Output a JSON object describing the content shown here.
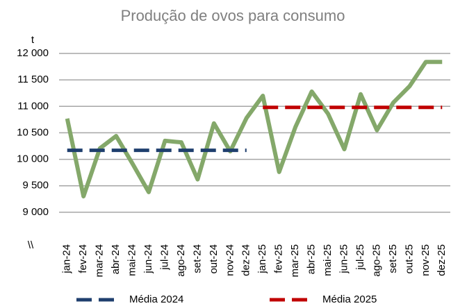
{
  "chart_data": {
    "type": "line",
    "title": "Produção de ovos para consumo",
    "y_unit": "t",
    "y_break_label": "\\\\",
    "categories": [
      "jan-24",
      "fev-24",
      "mar-24",
      "abr-24",
      "mai-24",
      "jun-24",
      "jul-24",
      "ago-24",
      "set-24",
      "out-24",
      "nov-24",
      "dez-24",
      "jan-25",
      "fev-25",
      "mar-25",
      "abr-25",
      "mai-25",
      "jun-25",
      "jul-25",
      "ago-25",
      "set-25",
      "out-25",
      "nov-25",
      "dez-25"
    ],
    "series": [
      {
        "color": "#84a86a",
        "width": 6,
        "dashed": false,
        "values": [
          10770,
          9300,
          10205,
          10440,
          9920,
          9380,
          10350,
          10320,
          9620,
          10680,
          10150,
          10780,
          11200,
          9760,
          10610,
          11280,
          10860,
          10190,
          11230,
          10550,
          11070,
          11380,
          11840,
          11840
        ]
      },
      {
        "name": "Média 2024",
        "color": "#1f3f6e",
        "width": 5,
        "dashed": true,
        "values": [
          10170,
          10170,
          10170,
          10170,
          10170,
          10170,
          10170,
          10170,
          10170,
          10170,
          10170,
          10170,
          null,
          null,
          null,
          null,
          null,
          null,
          null,
          null,
          null,
          null,
          null,
          null
        ]
      },
      {
        "name": "Média 2025",
        "color": "#c00000",
        "width": 5,
        "dashed": true,
        "values": [
          null,
          null,
          null,
          null,
          null,
          null,
          null,
          null,
          null,
          null,
          null,
          null,
          10980,
          10980,
          10980,
          10980,
          10980,
          10980,
          10980,
          10980,
          10980,
          10980,
          10980,
          10980
        ]
      }
    ],
    "ylim": [
      8500,
      12000
    ],
    "yticks": [
      {
        "value": 9000,
        "label": "9 000"
      },
      {
        "value": 9500,
        "label": "9 500"
      },
      {
        "value": 10000,
        "label": "10 000"
      },
      {
        "value": 10500,
        "label": "10 500"
      },
      {
        "value": 11000,
        "label": "11 000"
      },
      {
        "value": 11500,
        "label": "11 500"
      },
      {
        "value": 12000,
        "label": "12 000"
      }
    ],
    "grid": true
  }
}
